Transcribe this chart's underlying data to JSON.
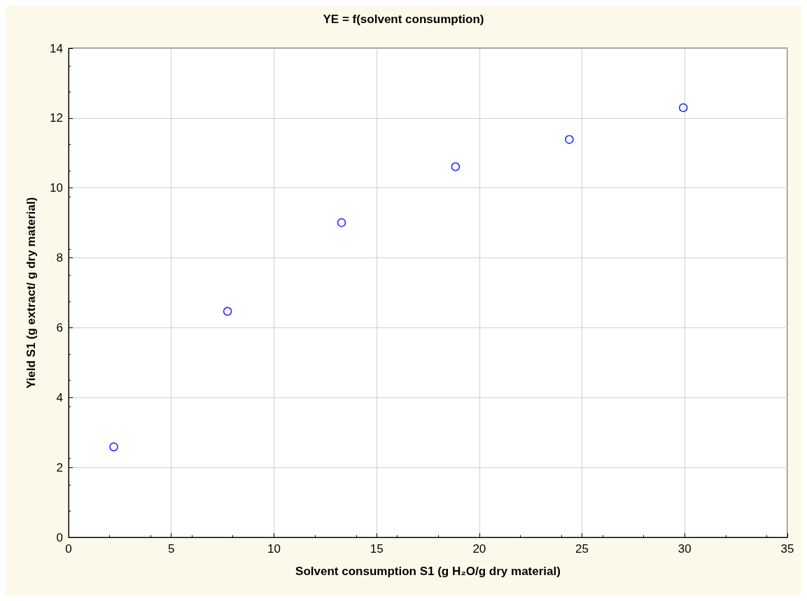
{
  "chart_data": {
    "type": "scatter",
    "title": "YE = f(solvent consumption)",
    "xlabel": "Solvent consumption S1 (g H₂O/g dry material)",
    "ylabel": "Yield S1 (g extract/ g dry material)",
    "x": [
      2.2,
      7.74,
      13.29,
      18.84,
      24.38,
      29.93
    ],
    "series": [
      {
        "color": "#0000ff",
        "values": [
          2.59,
          6.47,
          9.01,
          10.61,
          11.39,
          12.3
        ]
      }
    ],
    "xlim": [
      0,
      35
    ],
    "xticks": [
      0,
      5,
      10,
      15,
      20,
      25,
      30,
      35
    ],
    "ylim": [
      0,
      14
    ],
    "yticks": [
      0,
      2,
      4,
      6,
      8,
      10,
      12,
      14
    ],
    "grid": true,
    "marker": "circle"
  }
}
